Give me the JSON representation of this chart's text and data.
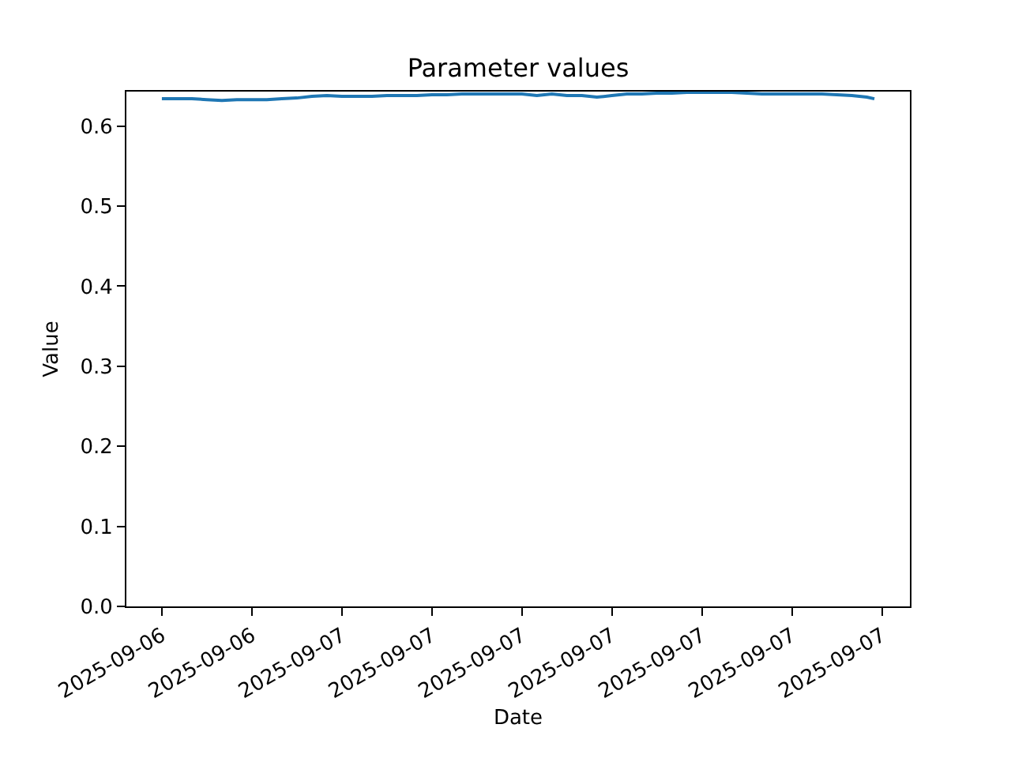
{
  "chart_data": {
    "type": "line",
    "title": "Parameter values",
    "xlabel": "Date",
    "ylabel": "Value",
    "x": [
      "2025-09-06T18:00",
      "2025-09-06T18:30",
      "2025-09-06T19:00",
      "2025-09-06T19:30",
      "2025-09-06T20:00",
      "2025-09-06T20:30",
      "2025-09-06T21:00",
      "2025-09-06T21:30",
      "2025-09-06T22:00",
      "2025-09-06T22:30",
      "2025-09-06T23:00",
      "2025-09-06T23:30",
      "2025-09-07T00:00",
      "2025-09-07T00:30",
      "2025-09-07T01:00",
      "2025-09-07T01:30",
      "2025-09-07T02:00",
      "2025-09-07T02:30",
      "2025-09-07T03:00",
      "2025-09-07T03:30",
      "2025-09-07T04:00",
      "2025-09-07T04:30",
      "2025-09-07T05:00",
      "2025-09-07T05:30",
      "2025-09-07T06:00",
      "2025-09-07T06:30",
      "2025-09-07T07:00",
      "2025-09-07T07:30",
      "2025-09-07T08:00",
      "2025-09-07T08:30",
      "2025-09-07T09:00",
      "2025-09-07T09:30",
      "2025-09-07T10:00",
      "2025-09-07T10:30",
      "2025-09-07T11:00",
      "2025-09-07T11:30",
      "2025-09-07T12:00",
      "2025-09-07T12:30",
      "2025-09-07T13:00",
      "2025-09-07T13:30",
      "2025-09-07T14:00",
      "2025-09-07T14:30",
      "2025-09-07T15:00",
      "2025-09-07T15:30",
      "2025-09-07T16:00",
      "2025-09-07T16:30",
      "2025-09-07T17:00",
      "2025-09-07T17:30",
      "2025-09-07T17:45"
    ],
    "series": [
      {
        "color": "#1f77b4",
        "values": [
          0.634,
          0.634,
          0.634,
          0.633,
          0.632,
          0.633,
          0.633,
          0.633,
          0.634,
          0.635,
          0.637,
          0.638,
          0.637,
          0.637,
          0.637,
          0.638,
          0.638,
          0.638,
          0.639,
          0.639,
          0.64,
          0.64,
          0.64,
          0.64,
          0.64,
          0.638,
          0.64,
          0.638,
          0.638,
          0.636,
          0.638,
          0.64,
          0.64,
          0.641,
          0.641,
          0.642,
          0.642,
          0.642,
          0.642,
          0.641,
          0.64,
          0.64,
          0.64,
          0.64,
          0.64,
          0.639,
          0.638,
          0.636,
          0.634
        ]
      }
    ],
    "xlim": [
      "2025-09-06T16:49",
      "2025-09-07T18:56"
    ],
    "xticks": [
      {
        "value": "2025-09-06T18:00",
        "label": "2025-09-06"
      },
      {
        "value": "2025-09-06T21:00",
        "label": "2025-09-06"
      },
      {
        "value": "2025-09-07T00:00",
        "label": "2025-09-07"
      },
      {
        "value": "2025-09-07T03:00",
        "label": "2025-09-07"
      },
      {
        "value": "2025-09-07T06:00",
        "label": "2025-09-07"
      },
      {
        "value": "2025-09-07T09:00",
        "label": "2025-09-07"
      },
      {
        "value": "2025-09-07T12:00",
        "label": "2025-09-07"
      },
      {
        "value": "2025-09-07T15:00",
        "label": "2025-09-07"
      },
      {
        "value": "2025-09-07T18:00",
        "label": "2025-09-07"
      }
    ],
    "ylim": [
      0,
      0.643
    ],
    "yticks": [
      {
        "value": 0,
        "label": "0.0"
      },
      0.1,
      0.2,
      0.3,
      0.4,
      0.5,
      0.6
    ],
    "line_style": "solid"
  }
}
